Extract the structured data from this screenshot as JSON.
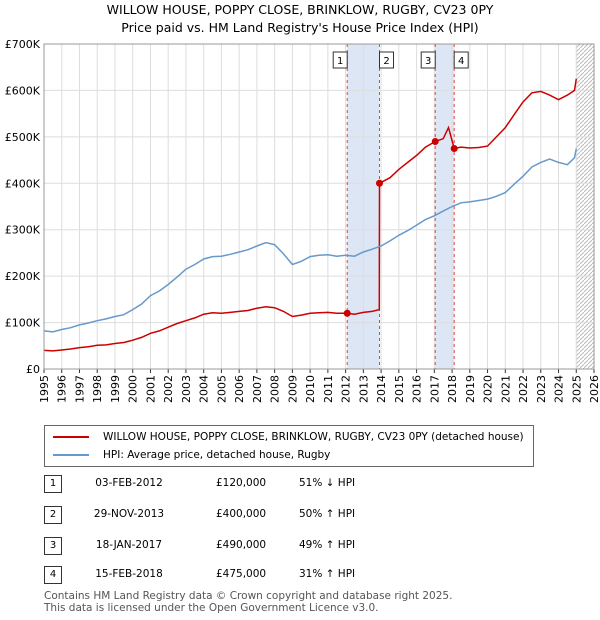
{
  "chart_data": {
    "type": "line",
    "title": "WILLOW HOUSE, POPPY CLOSE, BRINKLOW, RUGBY, CV23 0PY",
    "subtitle": "Price paid vs. HM Land Registry's House Price Index (HPI)",
    "xlim": [
      1995,
      2026
    ],
    "ylim": [
      0,
      700000
    ],
    "y_ticks": [
      0,
      100000,
      200000,
      300000,
      400000,
      500000,
      600000,
      700000
    ],
    "y_tick_labels": [
      "£0",
      "£100K",
      "£200K",
      "£300K",
      "£400K",
      "£500K",
      "£600K",
      "£700K"
    ],
    "x_ticks": [
      "1995",
      "1996",
      "1997",
      "1998",
      "1999",
      "2000",
      "2001",
      "2002",
      "2003",
      "2004",
      "2005",
      "2006",
      "2007",
      "2008",
      "2009",
      "2010",
      "2011",
      "2012",
      "2013",
      "2014",
      "2015",
      "2016",
      "2017",
      "2018",
      "2019",
      "2020",
      "2021",
      "2022",
      "2023",
      "2024",
      "2025",
      "2026"
    ],
    "grid": true,
    "colors": {
      "property": "#cc0000",
      "hpi": "#6699cc",
      "band": "#dde6f5",
      "marker": "#cc0000",
      "hatch": "#bbbbbb"
    },
    "series": [
      {
        "name": "WILLOW HOUSE, POPPY CLOSE, BRINKLOW, RUGBY, CV23 0PY (detached house)",
        "x": [
          1995.0,
          1995.5,
          1996.0,
          1996.5,
          1997.0,
          1997.5,
          1998.0,
          1998.5,
          1999.0,
          1999.5,
          2000.0,
          2000.5,
          2001.0,
          2001.5,
          2002.0,
          2002.5,
          2003.0,
          2003.5,
          2004.0,
          2004.5,
          2005.0,
          2005.5,
          2006.0,
          2006.5,
          2007.0,
          2007.5,
          2008.0,
          2008.5,
          2009.0,
          2009.5,
          2010.0,
          2010.5,
          2011.0,
          2011.5,
          2012.09,
          2012.5,
          2013.0,
          2013.5,
          2013.9,
          2013.91,
          2014.5,
          2015.0,
          2015.5,
          2016.0,
          2016.5,
          2017.05,
          2017.5,
          2017.8,
          2018.12,
          2018.5,
          2019.0,
          2019.5,
          2020.0,
          2020.5,
          2021.0,
          2021.5,
          2022.0,
          2022.5,
          2023.0,
          2023.5,
          2024.0,
          2024.5,
          2024.9,
          2025.0
        ],
        "values": [
          40000,
          39000,
          41000,
          43000,
          46000,
          48000,
          51000,
          52000,
          55000,
          57000,
          62000,
          68000,
          77000,
          82000,
          90000,
          98000,
          104000,
          110000,
          118000,
          121000,
          120000,
          122000,
          124000,
          126000,
          131000,
          134000,
          132000,
          124000,
          113000,
          116000,
          120000,
          121000,
          122000,
          120000,
          120000,
          118000,
          122000,
          124000,
          128000,
          400000,
          412000,
          430000,
          445000,
          460000,
          478000,
          490000,
          496000,
          520000,
          475000,
          478000,
          476000,
          477000,
          480000,
          500000,
          520000,
          548000,
          575000,
          595000,
          598000,
          590000,
          580000,
          590000,
          600000,
          625000
        ]
      },
      {
        "name": "HPI: Average price, detached house, Rugby",
        "x": [
          1995.0,
          1995.5,
          1996.0,
          1996.5,
          1997.0,
          1997.5,
          1998.0,
          1998.5,
          1999.0,
          1999.5,
          2000.0,
          2000.5,
          2001.0,
          2001.5,
          2002.0,
          2002.5,
          2003.0,
          2003.5,
          2004.0,
          2004.5,
          2005.0,
          2005.5,
          2006.0,
          2006.5,
          2007.0,
          2007.5,
          2008.0,
          2008.5,
          2009.0,
          2009.5,
          2010.0,
          2010.5,
          2011.0,
          2011.5,
          2012.0,
          2012.5,
          2013.0,
          2013.5,
          2014.0,
          2014.5,
          2015.0,
          2015.5,
          2016.0,
          2016.5,
          2017.0,
          2017.5,
          2018.0,
          2018.5,
          2019.0,
          2019.5,
          2020.0,
          2020.5,
          2021.0,
          2021.5,
          2022.0,
          2022.5,
          2023.0,
          2023.5,
          2024.0,
          2024.5,
          2024.9,
          2025.0
        ],
        "values": [
          82000,
          80000,
          85000,
          89000,
          95000,
          99000,
          104000,
          108000,
          113000,
          117000,
          128000,
          140000,
          158000,
          168000,
          182000,
          198000,
          215000,
          225000,
          237000,
          242000,
          243000,
          247000,
          252000,
          257000,
          265000,
          272000,
          268000,
          248000,
          225000,
          232000,
          242000,
          245000,
          246000,
          243000,
          245000,
          243000,
          252000,
          258000,
          265000,
          276000,
          288000,
          298000,
          310000,
          322000,
          330000,
          340000,
          350000,
          358000,
          360000,
          363000,
          366000,
          372000,
          380000,
          398000,
          415000,
          435000,
          445000,
          452000,
          445000,
          440000,
          455000,
          475000
        ]
      }
    ],
    "transactions": [
      {
        "id": "1",
        "date": "03-FEB-2012",
        "x": 2012.09,
        "price": 120000,
        "price_label": "£120,000",
        "hpi": "51% ↓ HPI"
      },
      {
        "id": "2",
        "date": "29-NOV-2013",
        "x": 2013.91,
        "price": 400000,
        "price_label": "£400,000",
        "hpi": "50% ↑ HPI"
      },
      {
        "id": "3",
        "date": "18-JAN-2017",
        "x": 2017.05,
        "price": 490000,
        "price_label": "£490,000",
        "hpi": "49% ↑ HPI"
      },
      {
        "id": "4",
        "date": "15-FEB-2018",
        "x": 2018.12,
        "price": 475000,
        "price_label": "£475,000",
        "hpi": "31% ↑ HPI"
      }
    ],
    "forecast_from": 2025.0
  },
  "legend": {
    "property": "WILLOW HOUSE, POPPY CLOSE, BRINKLOW, RUGBY, CV23 0PY (detached house)",
    "hpi": "HPI: Average price, detached house, Rugby"
  },
  "footer": {
    "line1": "Contains HM Land Registry data © Crown copyright and database right 2025.",
    "line2": "This data is licensed under the Open Government Licence v3.0."
  }
}
